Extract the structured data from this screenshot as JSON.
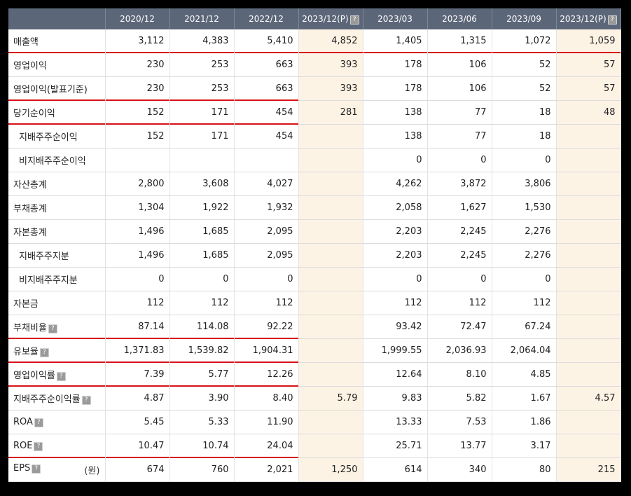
{
  "header": {
    "columns": [
      "2020/12",
      "2021/12",
      "2022/12",
      "2023/12(P)",
      "2023/03",
      "2023/06",
      "2023/09",
      "2023/12(P)"
    ],
    "help_icon_columns": [
      3,
      7
    ]
  },
  "help_icon_glyph": "?",
  "rows": [
    {
      "label": "매출액",
      "values": [
        "3,112",
        "4,383",
        "5,410",
        "4,852",
        "1,405",
        "1,315",
        "1,072",
        "1,059"
      ]
    },
    {
      "label": "영업이익",
      "values": [
        "230",
        "253",
        "663",
        "393",
        "178",
        "106",
        "52",
        "57"
      ]
    },
    {
      "label": "영업이익(발표기준)",
      "values": [
        "230",
        "253",
        "663",
        "393",
        "178",
        "106",
        "52",
        "57"
      ]
    },
    {
      "label": "당기순이익",
      "values": [
        "152",
        "171",
        "454",
        "281",
        "138",
        "77",
        "18",
        "48"
      ]
    },
    {
      "label": "지배주주순이익",
      "values": [
        "152",
        "171",
        "454",
        "",
        "138",
        "77",
        "18",
        ""
      ]
    },
    {
      "label": "비지배주주순이익",
      "values": [
        "",
        "",
        "",
        "",
        "0",
        "0",
        "0",
        ""
      ]
    },
    {
      "label": "자산총계",
      "values": [
        "2,800",
        "3,608",
        "4,027",
        "",
        "4,262",
        "3,872",
        "3,806",
        ""
      ]
    },
    {
      "label": "부채총계",
      "values": [
        "1,304",
        "1,922",
        "1,932",
        "",
        "2,058",
        "1,627",
        "1,530",
        ""
      ]
    },
    {
      "label": "자본총계",
      "values": [
        "1,496",
        "1,685",
        "2,095",
        "",
        "2,203",
        "2,245",
        "2,276",
        ""
      ]
    },
    {
      "label": "지배주주지분",
      "values": [
        "1,496",
        "1,685",
        "2,095",
        "",
        "2,203",
        "2,245",
        "2,276",
        ""
      ]
    },
    {
      "label": "비지배주주지분",
      "values": [
        "0",
        "0",
        "0",
        "",
        "0",
        "0",
        "0",
        ""
      ]
    },
    {
      "label": "자본금",
      "values": [
        "112",
        "112",
        "112",
        "",
        "112",
        "112",
        "112",
        ""
      ]
    },
    {
      "label": "부채비율",
      "values": [
        "87.14",
        "114.08",
        "92.22",
        "",
        "93.42",
        "72.47",
        "67.24",
        ""
      ]
    },
    {
      "label": "유보율",
      "values": [
        "1,371.83",
        "1,539.82",
        "1,904.31",
        "",
        "1,999.55",
        "2,036.93",
        "2,064.04",
        ""
      ]
    },
    {
      "label": "영업이익률",
      "values": [
        "7.39",
        "5.77",
        "12.26",
        "",
        "12.64",
        "8.10",
        "4.85",
        ""
      ]
    },
    {
      "label": "지배주주순이익률",
      "values": [
        "4.87",
        "3.90",
        "8.40",
        "5.79",
        "9.83",
        "5.82",
        "1.67",
        "4.57"
      ]
    },
    {
      "label": "ROA",
      "values": [
        "5.45",
        "5.33",
        "11.90",
        "",
        "13.33",
        "7.53",
        "1.86",
        ""
      ]
    },
    {
      "label": "ROE",
      "values": [
        "10.47",
        "10.74",
        "24.04",
        "",
        "25.71",
        "13.77",
        "3.17",
        ""
      ]
    },
    {
      "label": "EPS",
      "unit": "(원)",
      "values": [
        "674",
        "760",
        "2,021",
        "1,250",
        "614",
        "340",
        "80",
        "215"
      ]
    }
  ],
  "colors": {
    "header_bg": "#5b6679",
    "estimate_bg": "#fdf3e5",
    "highlight_line": "#d8121a"
  }
}
